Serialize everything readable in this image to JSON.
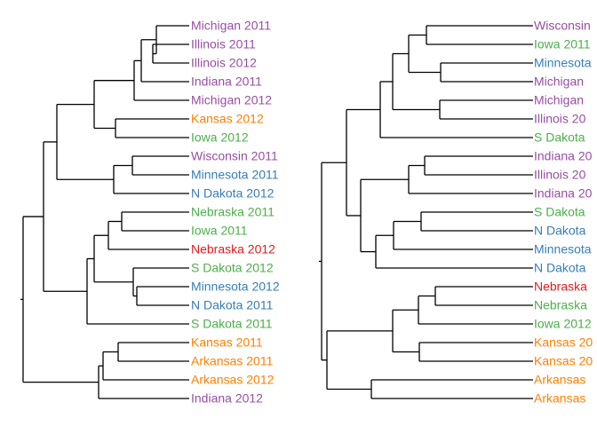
{
  "colors": {
    "purple": "#984ea3",
    "orange": "#ff7f00",
    "green": "#4daf4a",
    "blue": "#377eb8",
    "red": "#e41a1c"
  },
  "left_tree": {
    "labels": [
      {
        "text": "Michigan 2011",
        "color": "#984ea3"
      },
      {
        "text": "Illinois 2011",
        "color": "#984ea3"
      },
      {
        "text": "Illinois 2012",
        "color": "#984ea3"
      },
      {
        "text": "Indiana 2011",
        "color": "#984ea3"
      },
      {
        "text": "Michigan 2012",
        "color": "#984ea3"
      },
      {
        "text": "Kansas 2012",
        "color": "#ff7f00"
      },
      {
        "text": "Iowa 2012",
        "color": "#4daf4a"
      },
      {
        "text": "Wisconsin 2011",
        "color": "#984ea3"
      },
      {
        "text": "Minnesota 2011",
        "color": "#377eb8"
      },
      {
        "text": "N Dakota 2012",
        "color": "#377eb8"
      },
      {
        "text": "Nebraska 2011",
        "color": "#4daf4a"
      },
      {
        "text": "Iowa 2011",
        "color": "#4daf4a"
      },
      {
        "text": "Nebraska 2012",
        "color": "#e41a1c"
      },
      {
        "text": "S Dakota 2012",
        "color": "#4daf4a"
      },
      {
        "text": "Minnesota 2012",
        "color": "#377eb8"
      },
      {
        "text": "N Dakota 2011",
        "color": "#377eb8"
      },
      {
        "text": "S Dakota 2011",
        "color": "#4daf4a"
      },
      {
        "text": "Kansas 2011",
        "color": "#ff7f00"
      },
      {
        "text": "Arkansas 2011",
        "color": "#ff7f00"
      },
      {
        "text": "Arkansas 2012",
        "color": "#ff7f00"
      },
      {
        "text": "Indiana 2012",
        "color": "#984ea3"
      }
    ]
  },
  "right_tree": {
    "labels": [
      {
        "text": "Wisconsin",
        "color": "#984ea3"
      },
      {
        "text": "Iowa 2011",
        "color": "#4daf4a"
      },
      {
        "text": "Minnesota",
        "color": "#377eb8"
      },
      {
        "text": "Michigan",
        "color": "#984ea3"
      },
      {
        "text": "Michigan",
        "color": "#984ea3"
      },
      {
        "text": "Illinois 20",
        "color": "#984ea3"
      },
      {
        "text": "S Dakota",
        "color": "#4daf4a"
      },
      {
        "text": "Indiana 20",
        "color": "#984ea3"
      },
      {
        "text": "Illinois 20",
        "color": "#984ea3"
      },
      {
        "text": "Indiana 20",
        "color": "#984ea3"
      },
      {
        "text": "S Dakota",
        "color": "#4daf4a"
      },
      {
        "text": "N Dakota",
        "color": "#377eb8"
      },
      {
        "text": "Minnesota",
        "color": "#377eb8"
      },
      {
        "text": "N Dakota",
        "color": "#377eb8"
      },
      {
        "text": "Nebraska",
        "color": "#e41a1c"
      },
      {
        "text": "Nebraska",
        "color": "#4daf4a"
      },
      {
        "text": "Iowa 2012",
        "color": "#4daf4a"
      },
      {
        "text": "Kansas 20",
        "color": "#ff7f00"
      },
      {
        "text": "Kansas 20",
        "color": "#ff7f00"
      },
      {
        "text": "Arkansas",
        "color": "#ff7f00"
      },
      {
        "text": "Arkansas",
        "color": "#ff7f00"
      }
    ]
  }
}
